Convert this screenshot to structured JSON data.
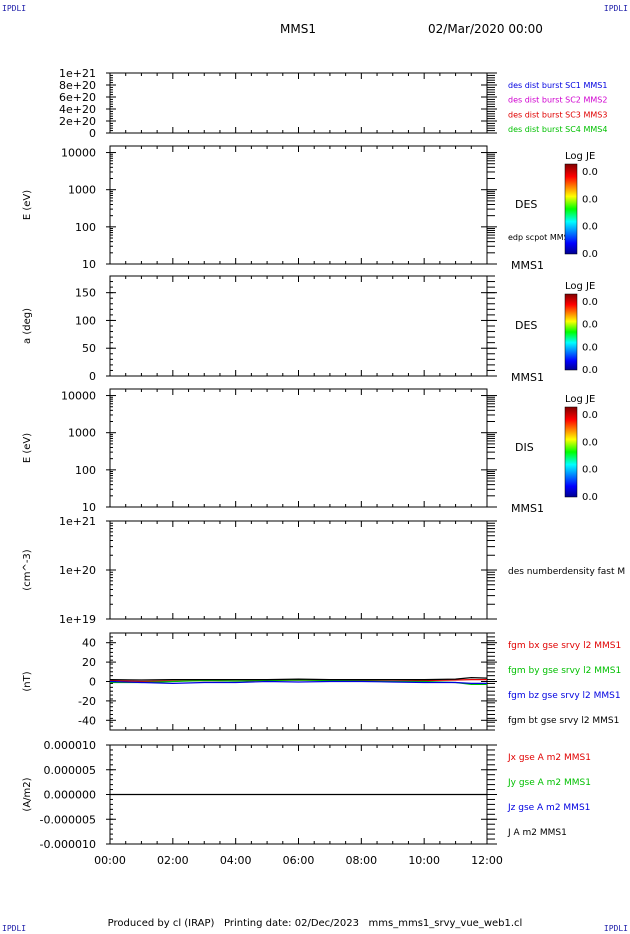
{
  "corners": {
    "top_left": "IPDLI",
    "top_right": "IPDLI",
    "bottom_left": "IPDLI",
    "bottom_right": "IPDLI"
  },
  "header": {
    "spacecraft": "MMS1",
    "date": "02/Mar/2020 00:00"
  },
  "footer": "Produced by cl (IRAP)   Printing date: 02/Dec/2023   mms_mms1_srvy_vue_web1.cl",
  "colors": {
    "black": "#000000",
    "red": "#e00000",
    "green": "#00c000",
    "blue": "#0000e0",
    "magenta": "#d000d0"
  },
  "chart_data": {
    "type": "line",
    "x_ticks": [
      "00:00",
      "02:00",
      "04:00",
      "06:00",
      "08:00",
      "10:00",
      "12:00"
    ],
    "xlim_hours": [
      0,
      12
    ],
    "panels": [
      {
        "id": "dist",
        "scale": "linear",
        "ylim": [
          0,
          1e+21
        ],
        "ylabel": "",
        "tick_values": [
          0,
          2e+20,
          4e+20,
          6e+20,
          8e+20,
          1e+21
        ],
        "tick_labels": [
          "0",
          "2e+20",
          "4e+20",
          "6e+20",
          "8e+20",
          "1e+21"
        ],
        "legend": [
          {
            "text": "des dist burst SC1 MMS1",
            "color": "#0000e0"
          },
          {
            "text": "des dist burst SC2 MMS2",
            "color": "#d000d0"
          },
          {
            "text": "des dist burst SC3 MMS3",
            "color": "#e00000"
          },
          {
            "text": "des dist burst SC4 MMS4",
            "color": "#00c000"
          }
        ],
        "series": [
          {
            "y": [
              0,
              0
            ],
            "style": "dashed",
            "color": "#000000"
          }
        ]
      },
      {
        "id": "des-energy",
        "scale": "log",
        "ylim": [
          10,
          15000
        ],
        "ylabel": "E (eV)",
        "tick_values": [
          10,
          100,
          1000,
          10000
        ],
        "tick_labels": [
          "10",
          "100",
          "1000",
          "10000"
        ],
        "right_label": "DES",
        "extra_label": "edp scpot MMS1",
        "bottom_label": "MMS1",
        "colorbar": {
          "title": "Log JE",
          "ticks": [
            "0.0",
            "0.0",
            "0.0",
            "0.0"
          ]
        }
      },
      {
        "id": "des-pitch",
        "scale": "linear",
        "ylim": [
          0,
          180
        ],
        "ylabel": "a (deg)",
        "tick_values": [
          0,
          50,
          100,
          150
        ],
        "tick_labels": [
          "0",
          "50",
          "100",
          "150"
        ],
        "right_label": "DES",
        "bottom_label": "MMS1",
        "colorbar": {
          "title": "Log JE",
          "ticks": [
            "0.0",
            "0.0",
            "0.0",
            "0.0"
          ]
        }
      },
      {
        "id": "dis-energy",
        "scale": "log",
        "ylim": [
          10,
          15000
        ],
        "ylabel": "E (eV)",
        "tick_values": [
          10,
          100,
          1000,
          10000
        ],
        "tick_labels": [
          "10",
          "100",
          "1000",
          "10000"
        ],
        "right_label": "DIS",
        "bottom_label": "MMS1",
        "colorbar": {
          "title": "Log JE",
          "ticks": [
            "0.0",
            "0.0",
            "0.0",
            "0.0"
          ]
        }
      },
      {
        "id": "density",
        "scale": "log",
        "ylim": [
          1e+19,
          1e+21
        ],
        "ylabel": "(cm^-3)",
        "tick_values": [
          1e+19,
          1e+20,
          1e+21
        ],
        "tick_labels": [
          "1e+19",
          "1e+20",
          "1e+21"
        ],
        "legend": [
          {
            "text": "des numberdensity fast M",
            "color": "#000000"
          }
        ]
      },
      {
        "id": "fgm",
        "scale": "linear",
        "ylim": [
          -50,
          50
        ],
        "ylabel": "(nT)",
        "tick_values": [
          -40,
          -20,
          0,
          20,
          40
        ],
        "tick_labels": [
          "-40",
          "-20",
          "0",
          "20",
          "40"
        ],
        "legend": [
          {
            "text": "fgm bx gse srvy l2 MMS1",
            "color": "#e00000"
          },
          {
            "text": "fgm by gse srvy l2 MMS1",
            "color": "#00c000"
          },
          {
            "text": "fgm bz gse srvy l2 MMS1",
            "color": "#0000e0"
          },
          {
            "text": "fgm bt gse srvy l2 MMS1",
            "color": "#000000"
          }
        ],
        "series": [
          {
            "name": "fgm bx gse srvy l2 MMS1",
            "color": "#e00000",
            "x": [
              0,
              1,
              2,
              3,
              4,
              5,
              6,
              7,
              8,
              9,
              10,
              11,
              11.5,
              12
            ],
            "y": [
              1,
              0,
              0.5,
              1,
              0.5,
              1,
              1.5,
              1,
              1,
              0.5,
              1,
              1.5,
              2,
              2
            ]
          },
          {
            "name": "fgm by gse srvy l2 MMS1",
            "color": "#00c000",
            "x": [
              0,
              1,
              2,
              3,
              4,
              5,
              6,
              7,
              8,
              9,
              10,
              11,
              11.5,
              12
            ],
            "y": [
              -1,
              -1,
              0,
              1,
              0.5,
              1,
              1.5,
              1,
              0.5,
              0,
              0,
              -1,
              -3,
              -3
            ]
          },
          {
            "name": "fgm bz gse srvy l2 MMS1",
            "color": "#0000e0",
            "x": [
              0,
              1,
              2,
              3,
              4,
              5,
              6,
              7,
              8,
              9,
              10,
              11,
              11.5,
              12
            ],
            "y": [
              0,
              -1,
              -2,
              -1,
              -1,
              0,
              -0.5,
              0,
              0,
              -0.5,
              -1,
              -1,
              -2,
              -2
            ]
          },
          {
            "name": "fgm bt gse srvy l2 MMS1",
            "color": "#000000",
            "x": [
              0,
              1,
              2,
              3,
              4,
              5,
              6,
              7,
              8,
              9,
              10,
              11,
              11.5,
              12
            ],
            "y": [
              2,
              1.5,
              2,
              2,
              2,
              2,
              2.5,
              2,
              2,
              2,
              2,
              2.5,
              4,
              3.5
            ]
          }
        ]
      },
      {
        "id": "current",
        "scale": "linear",
        "ylim": [
          -1e-05,
          1e-05
        ],
        "ylabel": "(A/m2)",
        "tick_values": [
          -1e-05,
          -5e-06,
          0,
          5e-06,
          1e-05
        ],
        "tick_labels": [
          "-0.000010",
          "-0.000005",
          "0.000000",
          "0.000005",
          "0.000010"
        ],
        "legend": [
          {
            "text": "Jx gse A m2 MMS1",
            "color": "#e00000"
          },
          {
            "text": "Jy gse A m2 MMS1",
            "color": "#00c000"
          },
          {
            "text": "Jz gse A m2 MMS1",
            "color": "#0000e0"
          },
          {
            "text": "J A m2 MMS1",
            "color": "#000000"
          }
        ],
        "series": [
          {
            "name": "J A m2 MMS1",
            "color": "#000000",
            "x": [
              0,
              12
            ],
            "y": [
              0,
              0
            ]
          }
        ]
      }
    ]
  }
}
